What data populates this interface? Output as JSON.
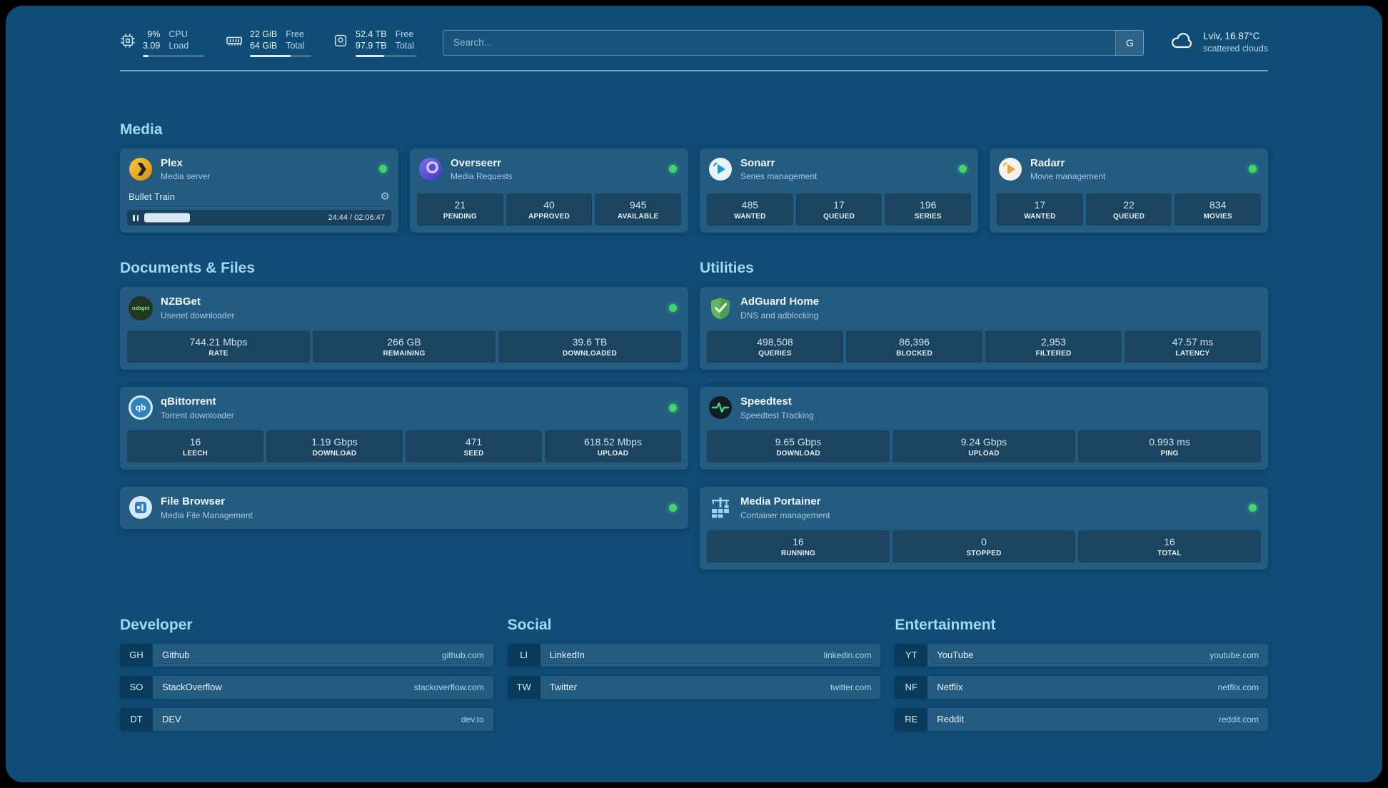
{
  "topbar": {
    "cpu": {
      "value": "9%",
      "sub": "3.09",
      "label_top": "CPU",
      "label_bottom": "Load",
      "percent": 9
    },
    "memory": {
      "value": "22 GiB",
      "sub": "64 GiB",
      "label_top": "Free",
      "label_bottom": "Total",
      "percent": 66
    },
    "disk": {
      "value": "52.4 TB",
      "sub": "97.9 TB",
      "label_top": "Free",
      "label_bottom": "Total",
      "percent": 46
    },
    "search": {
      "placeholder": "Search...",
      "provider_label": "G"
    },
    "weather": {
      "location": "Lviv, 16.87°C",
      "condition": "scattered clouds"
    }
  },
  "sections": {
    "media": "Media",
    "documents": "Documents & Files",
    "utilities": "Utilities",
    "developer": "Developer",
    "social": "Social",
    "entertainment": "Entertainment"
  },
  "services": {
    "plex": {
      "name": "Plex",
      "desc": "Media server",
      "now_playing": "Bullet Train",
      "time": "24:44 / 02:06:47",
      "progress": 19
    },
    "overseerr": {
      "name": "Overseerr",
      "desc": "Media Requests",
      "stats": [
        {
          "value": "21",
          "label": "PENDING"
        },
        {
          "value": "40",
          "label": "APPROVED"
        },
        {
          "value": "945",
          "label": "AVAILABLE"
        }
      ]
    },
    "sonarr": {
      "name": "Sonarr",
      "desc": "Series management",
      "stats": [
        {
          "value": "485",
          "label": "WANTED"
        },
        {
          "value": "17",
          "label": "QUEUED"
        },
        {
          "value": "196",
          "label": "SERIES"
        }
      ]
    },
    "radarr": {
      "name": "Radarr",
      "desc": "Movie management",
      "stats": [
        {
          "value": "17",
          "label": "WANTED"
        },
        {
          "value": "22",
          "label": "QUEUED"
        },
        {
          "value": "834",
          "label": "MOVIES"
        }
      ]
    },
    "nzbget": {
      "name": "NZBGet",
      "desc": "Usenet downloader",
      "icon_text": "nzbget",
      "stats": [
        {
          "value": "744.21 Mbps",
          "label": "RATE"
        },
        {
          "value": "266 GB",
          "label": "REMAINING"
        },
        {
          "value": "39.6 TB",
          "label": "DOWNLOADED"
        }
      ]
    },
    "qbittorrent": {
      "name": "qBittorrent",
      "desc": "Torrent downloader",
      "icon_text": "qb",
      "stats": [
        {
          "value": "16",
          "label": "LEECH"
        },
        {
          "value": "1.19 Gbps",
          "label": "DOWNLOAD"
        },
        {
          "value": "471",
          "label": "SEED"
        },
        {
          "value": "618.52 Mbps",
          "label": "UPLOAD"
        }
      ]
    },
    "filebrowser": {
      "name": "File Browser",
      "desc": "Media File Management"
    },
    "adguard": {
      "name": "AdGuard Home",
      "desc": "DNS and adblocking",
      "stats": [
        {
          "value": "498,508",
          "label": "QUERIES"
        },
        {
          "value": "86,396",
          "label": "BLOCKED"
        },
        {
          "value": "2,953",
          "label": "FILTERED"
        },
        {
          "value": "47.57 ms",
          "label": "LATENCY"
        }
      ]
    },
    "speedtest": {
      "name": "Speedtest",
      "desc": "Speedtest Tracking",
      "stats": [
        {
          "value": "9.65 Gbps",
          "label": "DOWNLOAD"
        },
        {
          "value": "9.24 Gbps",
          "label": "UPLOAD"
        },
        {
          "value": "0.993 ms",
          "label": "PING"
        }
      ]
    },
    "portainer": {
      "name": "Media Portainer",
      "desc": "Container management",
      "stats": [
        {
          "value": "16",
          "label": "RUNNING"
        },
        {
          "value": "0",
          "label": "STOPPED"
        },
        {
          "value": "16",
          "label": "TOTAL"
        }
      ]
    }
  },
  "bookmarks": {
    "developer": [
      {
        "abbr": "GH",
        "name": "Github",
        "url": "github.com"
      },
      {
        "abbr": "SO",
        "name": "StackOverflow",
        "url": "stackoverflow.com"
      },
      {
        "abbr": "DT",
        "name": "DEV",
        "url": "dev.to"
      }
    ],
    "social": [
      {
        "abbr": "LI",
        "name": "LinkedIn",
        "url": "linkedin.com"
      },
      {
        "abbr": "TW",
        "name": "Twitter",
        "url": "twitter.com"
      }
    ],
    "entertainment": [
      {
        "abbr": "YT",
        "name": "YouTube",
        "url": "youtube.com"
      },
      {
        "abbr": "NF",
        "name": "Netflix",
        "url": "netflix.com"
      },
      {
        "abbr": "RE",
        "name": "Reddit",
        "url": "reddit.com"
      }
    ]
  },
  "colors": {
    "background": "#0f4c76",
    "accent_green": "#43d56a",
    "header_blue": "#a3d7f3"
  }
}
